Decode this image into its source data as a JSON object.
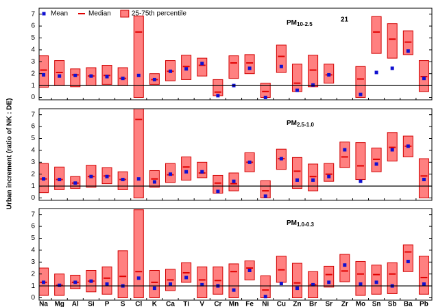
{
  "chart_data": [
    {
      "type": "box",
      "title_main": "PM",
      "title_sub": "10-2.5",
      "annotation": "21",
      "annotation_color": "#1010d0",
      "ylim": [
        -0.2,
        7.5
      ],
      "yticks": [
        0,
        1,
        2,
        3,
        4,
        5,
        6,
        7
      ],
      "hline": 1,
      "series": [
        {
          "name": "Mean",
          "mark": "square",
          "color": "#1010d0",
          "values": [
            1.9,
            1.8,
            1.85,
            1.8,
            1.75,
            1.6,
            1.85,
            1.5,
            2.2,
            2.4,
            2.85,
            0.15,
            1.0,
            2.45,
            0.0,
            2.6,
            0.6,
            1.05,
            1.9,
            null,
            0.25,
            2.1,
            2.45,
            3.9,
            1.6
          ]
        },
        {
          "name": "Median",
          "mark": "dash",
          "color": "#e00000",
          "values": [
            2.3,
            2.1,
            1.9,
            1.8,
            1.85,
            1.6,
            5.5,
            1.5,
            2.2,
            2.6,
            2.7,
            0.45,
            2.9,
            2.9,
            0.5,
            3.45,
            1.2,
            2.3,
            1.9,
            null,
            1.55,
            5.5,
            4.9,
            4.65,
            1.75
          ]
        },
        {
          "name": "25-75th percentile",
          "mark": "box",
          "color": "#ff8080",
          "edge": "#d00000",
          "low": [
            0.85,
            1.0,
            0.9,
            1.0,
            1.1,
            1.0,
            0.0,
            1.1,
            1.4,
            1.5,
            1.8,
            0.15,
            1.6,
            2.0,
            0.0,
            2.1,
            0.5,
            0.9,
            1.2,
            null,
            0.0,
            3.7,
            3.3,
            3.6,
            0.5
          ],
          "high": [
            3.5,
            3.1,
            2.4,
            2.5,
            2.7,
            2.5,
            6.85,
            2.0,
            3.1,
            3.55,
            3.3,
            1.5,
            3.5,
            3.6,
            1.2,
            4.4,
            2.8,
            3.55,
            2.8,
            null,
            2.6,
            6.8,
            6.2,
            5.6,
            3.1
          ]
        }
      ]
    },
    {
      "type": "box",
      "title_main": "PM",
      "title_sub": "2.5-1.0",
      "ylabel": "Urban increment (ratio of NK : DE)",
      "ylim": [
        -0.2,
        7.5
      ],
      "yticks": [
        0,
        1,
        2,
        3,
        4,
        5,
        6,
        7
      ],
      "hline": 1,
      "series": [
        {
          "mark": "square",
          "color": "#1010d0",
          "values": [
            1.6,
            1.55,
            1.25,
            1.8,
            1.8,
            1.55,
            1.6,
            1.35,
            2.0,
            2.2,
            2.2,
            0.55,
            1.4,
            3.0,
            0.15,
            3.3,
            1.5,
            1.5,
            1.8,
            4.05,
            1.4,
            2.85,
            4.05,
            4.35,
            1.55
          ]
        },
        {
          "mark": "dash",
          "color": "#e00000",
          "values": [
            1.6,
            1.55,
            1.25,
            1.8,
            1.85,
            1.55,
            6.6,
            1.6,
            1.95,
            2.6,
            2.1,
            1.25,
            1.2,
            3.0,
            0.6,
            3.3,
            2.25,
            1.8,
            2.0,
            3.45,
            2.7,
            3.25,
            4.25,
            4.35,
            1.85
          ]
        },
        {
          "mark": "box",
          "color": "#ff8080",
          "edge": "#d00000",
          "low": [
            0.45,
            0.7,
            0.8,
            0.9,
            1.2,
            0.7,
            0.0,
            0.9,
            1.3,
            1.5,
            1.7,
            0.4,
            0.6,
            2.2,
            0.0,
            2.4,
            0.8,
            0.6,
            1.4,
            2.55,
            1.55,
            2.2,
            3.1,
            3.45,
            0.0
          ],
          "high": [
            2.9,
            2.6,
            1.8,
            2.75,
            2.55,
            2.2,
            7.5,
            2.3,
            2.9,
            3.45,
            3.0,
            1.9,
            2.1,
            3.8,
            1.45,
            4.1,
            3.4,
            2.85,
            2.9,
            4.7,
            4.65,
            4.2,
            5.5,
            5.2,
            3.3
          ]
        }
      ]
    },
    {
      "type": "box",
      "title_main": "PM",
      "title_sub": "1.0-0.3",
      "categories": [
        "Na",
        "Mg",
        "Al",
        "Si",
        "P",
        "S",
        "Cl",
        "K",
        "Ca",
        "Ti",
        "V",
        "Cr",
        "Mn",
        "Fe",
        "Ni",
        "Cu",
        "Zn",
        "Br",
        "Sr",
        "Zr",
        "Mo",
        "Sn",
        "Sb",
        "Ba",
        "Pb"
      ],
      "ylim": [
        -0.2,
        7.5
      ],
      "yticks": [
        0,
        1,
        2,
        3,
        4,
        5,
        6,
        7
      ],
      "hline": 1,
      "series": [
        {
          "mark": "square",
          "color": "#1010d0",
          "values": [
            1.3,
            1.05,
            1.3,
            1.4,
            1.15,
            1.0,
            1.65,
            0.8,
            1.15,
            1.7,
            1.1,
            1.0,
            0.65,
            2.3,
            0.1,
            1.2,
            0.8,
            1.1,
            1.3,
            2.75,
            1.15,
            1.3,
            1.0,
            3.05,
            1.15
          ]
        },
        {
          "mark": "dash",
          "color": "#e00000",
          "values": [
            1.3,
            1.05,
            1.3,
            1.4,
            1.65,
            1.8,
            2.2,
            1.3,
            1.5,
            2.1,
            1.5,
            1.45,
            2.2,
            2.5,
            0.65,
            2.35,
            1.25,
            1.1,
            1.95,
            2.25,
            2.0,
            1.95,
            2.0,
            3.85,
            1.7
          ]
        },
        {
          "mark": "box",
          "color": "#ff8080",
          "edge": "#d00000",
          "low": [
            0.2,
            0.2,
            0.75,
            0.5,
            0.3,
            0.0,
            0.0,
            0.0,
            0.6,
            1.3,
            0.0,
            0.3,
            0.0,
            1.5,
            0.0,
            1.3,
            0.0,
            0.0,
            0.9,
            1.35,
            0.2,
            0.3,
            0.35,
            2.2,
            0.3
          ],
          "high": [
            2.5,
            2.0,
            1.9,
            2.3,
            2.6,
            3.95,
            7.4,
            2.3,
            2.4,
            2.95,
            2.6,
            2.6,
            2.85,
            3.1,
            1.85,
            3.5,
            2.9,
            2.2,
            2.65,
            3.65,
            3.05,
            2.75,
            2.95,
            4.45,
            3.5
          ]
        }
      ]
    }
  ]
}
